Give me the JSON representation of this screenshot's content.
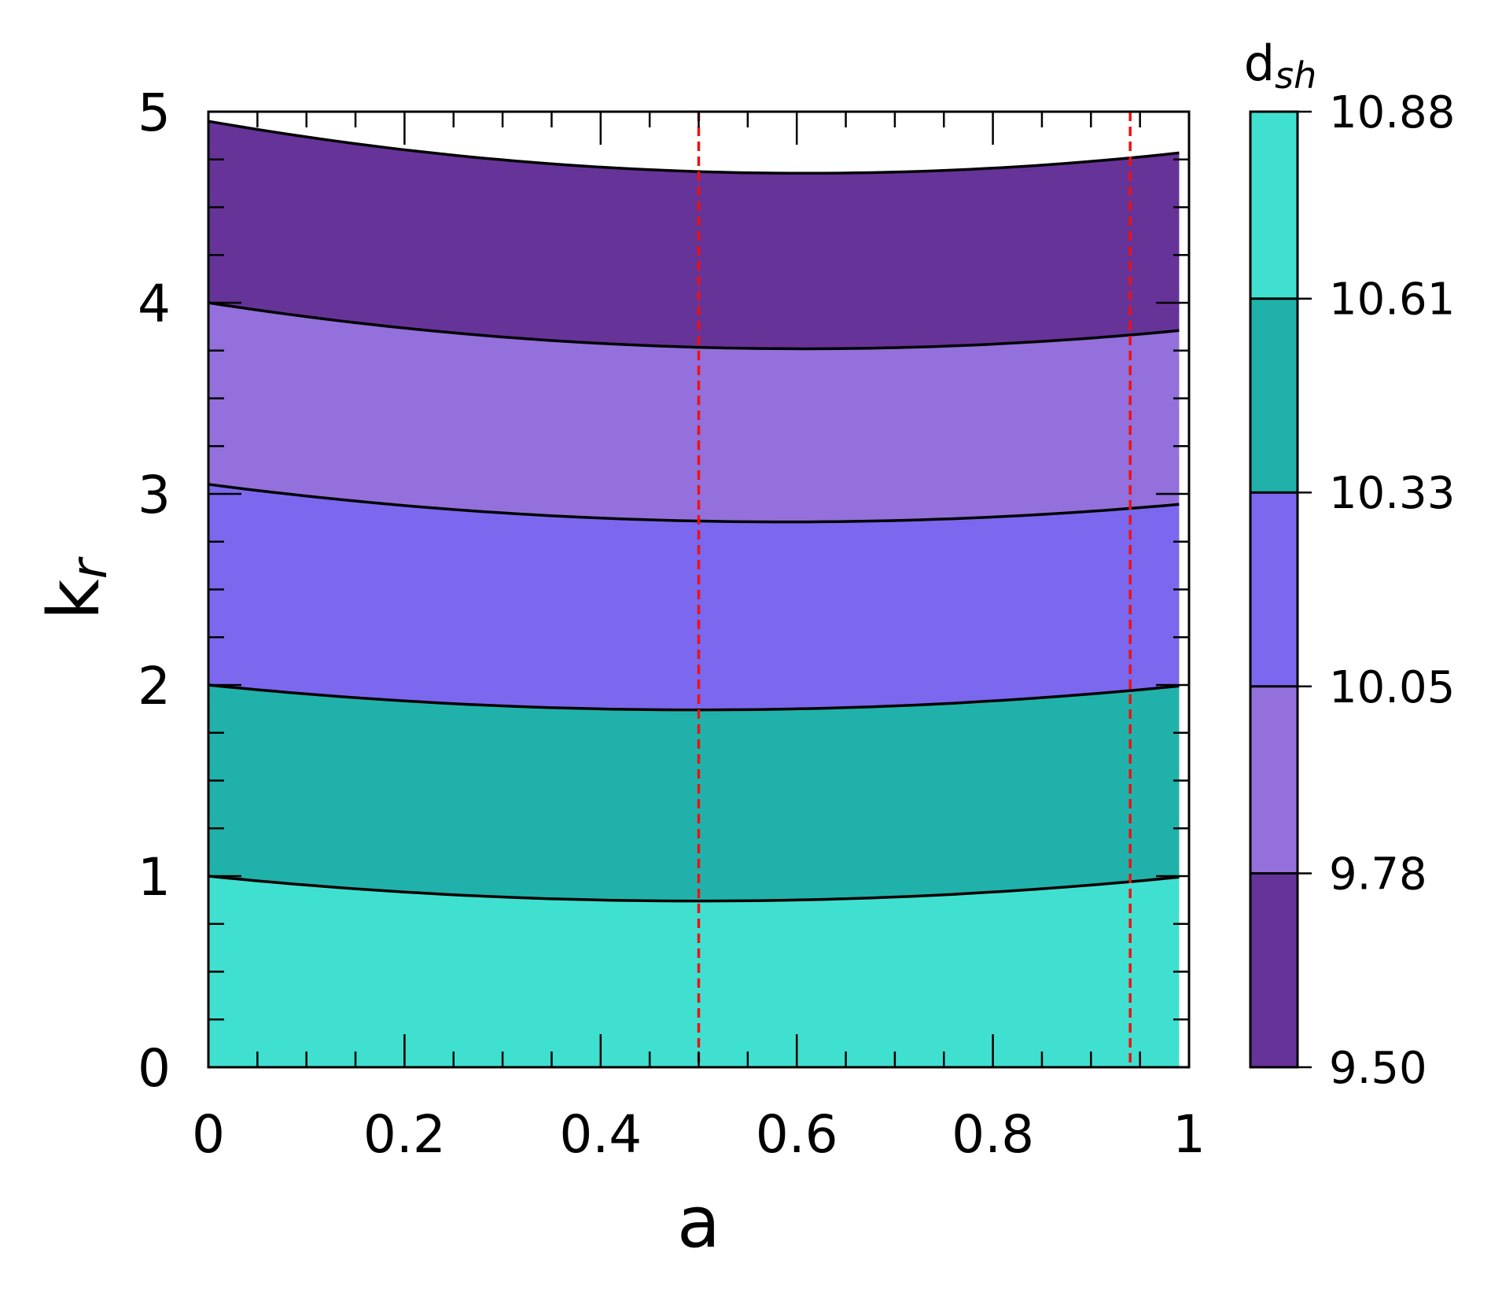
{
  "chart_data": {
    "type": "contour",
    "xlabel": "a",
    "ylabel": {
      "base": "k",
      "sub": "r"
    },
    "colorbar_label": {
      "base": "d",
      "sub": "sh"
    },
    "xlim": [
      0,
      1
    ],
    "ylim": [
      0,
      5
    ],
    "x_ticks": [
      0,
      0.2,
      0.4,
      0.6,
      0.8,
      1
    ],
    "x_tick_labels": [
      "0",
      "0.2",
      "0.4",
      "0.6",
      "0.8",
      "1"
    ],
    "y_ticks": [
      0,
      1,
      2,
      3,
      4,
      5
    ],
    "y_tick_labels": [
      "0",
      "1",
      "2",
      "3",
      "4",
      "5"
    ],
    "colorbar_levels": [
      9.5,
      9.78,
      10.05,
      10.33,
      10.61,
      10.88
    ],
    "colorbar_tick_labels": [
      "9.50",
      "9.78",
      "10.05",
      "10.33",
      "10.61",
      "10.88"
    ],
    "colorbar_colors": [
      "#663399",
      "#9370db",
      "#7b68ee",
      "#20b2aa",
      "#40e0d0"
    ],
    "contour_lines": [
      {
        "level": 10.61,
        "points": [
          [
            0,
            1.0
          ],
          [
            0.48,
            0.87
          ],
          [
            1.0,
            1.0
          ]
        ]
      },
      {
        "level": 10.33,
        "points": [
          [
            0,
            2.0
          ],
          [
            0.48,
            1.87
          ],
          [
            1.0,
            2.0
          ]
        ]
      },
      {
        "level": 10.05,
        "points": [
          [
            0,
            3.05
          ],
          [
            0.48,
            2.86
          ],
          [
            1.0,
            2.95
          ]
        ]
      },
      {
        "level": 9.78,
        "points": [
          [
            0,
            4.0
          ],
          [
            0.48,
            3.77
          ],
          [
            1.0,
            3.86
          ]
        ]
      },
      {
        "level": 9.5,
        "points": [
          [
            0,
            4.95
          ],
          [
            0.48,
            4.69
          ],
          [
            1.0,
            4.79
          ]
        ]
      }
    ],
    "bands": [
      {
        "range": [
          10.61,
          10.88
        ],
        "color": "#40e0d0"
      },
      {
        "range": [
          10.33,
          10.61
        ],
        "color": "#20b2aa"
      },
      {
        "range": [
          10.05,
          10.33
        ],
        "color": "#7b68ee"
      },
      {
        "range": [
          9.78,
          10.05
        ],
        "color": "#9370db"
      },
      {
        "range": [
          9.5,
          9.78
        ],
        "color": "#663399"
      }
    ],
    "data_x_max": 0.99,
    "reference_lines": [
      {
        "orientation": "vertical",
        "x": 0.5,
        "style": "dashed",
        "color": "#ee1111"
      },
      {
        "orientation": "vertical",
        "x": 0.94,
        "style": "dashed",
        "color": "#ee1111"
      }
    ],
    "grid": false
  }
}
